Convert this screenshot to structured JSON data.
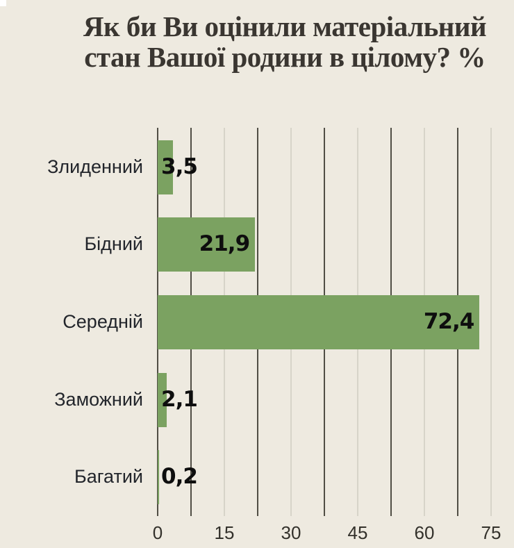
{
  "page": {
    "background": "#EEEAE0",
    "corner_square_color": "#FFFFFF"
  },
  "title": {
    "line1": "Як би Ви оцінили матеріальний",
    "line2": "стан Вашої родини в цілому? %",
    "color": "#3A3631"
  },
  "chart_data": {
    "type": "bar",
    "orientation": "horizontal",
    "title": "Як би Ви оцінили матеріальний стан Вашої родини в цілому? %",
    "xlabel": "",
    "ylabel": "",
    "categories": [
      "Злиденний",
      "Бідний",
      "Середній",
      "Заможний",
      "Багатий"
    ],
    "values": [
      3.5,
      21.9,
      72.4,
      2.1,
      0.2
    ],
    "value_labels": [
      "3,5",
      "21,9",
      "72,4",
      "2,1",
      "0,2"
    ],
    "xlim": [
      0,
      75
    ],
    "x_ticks": [
      0,
      15,
      30,
      45,
      60,
      75
    ],
    "x_tick_labels": [
      "0",
      "15",
      "30",
      "45",
      "60",
      "75"
    ],
    "grid": "vertical",
    "grid_minor_step": 7.5,
    "legend": "none",
    "colors": {
      "bar": "#7BA261",
      "grid_dark": "#504E45",
      "grid_light": "#D7D4C9",
      "category_text": "#22252B",
      "value_text": "#0E0E0E",
      "tick_text": "#33312B"
    }
  }
}
